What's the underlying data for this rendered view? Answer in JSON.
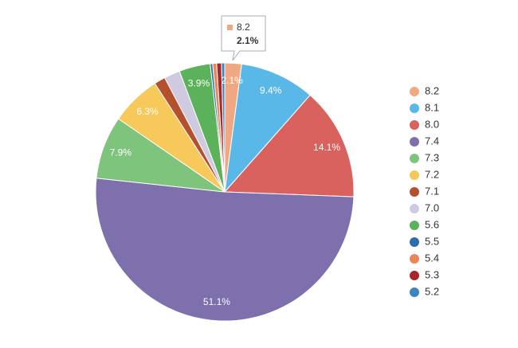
{
  "chart_data": {
    "type": "pie",
    "categories": [
      "8.2",
      "8.1",
      "8.0",
      "7.4",
      "7.3",
      "7.2",
      "7.1",
      "7.0",
      "5.6",
      "5.5",
      "5.4",
      "5.3",
      "5.2"
    ],
    "values": [
      2.1,
      9.4,
      14.1,
      51.1,
      7.9,
      6.3,
      1.4,
      2.0,
      3.9,
      0.3,
      0.5,
      0.6,
      0.4
    ],
    "value_labels": [
      "2.1%",
      "9.4%",
      "14.1%",
      "51.1%",
      "7.9%",
      "6.3%",
      null,
      null,
      "3.9%",
      null,
      null,
      null,
      null
    ],
    "colors": [
      "#f0a882",
      "#5ab8e8",
      "#d9625f",
      "#7e6fad",
      "#7fc47d",
      "#f6c95a",
      "#b5502f",
      "#cfcae0",
      "#5cb25a",
      "#2b6ea8",
      "#e8875a",
      "#a6282a",
      "#3b85c0"
    ],
    "legend": "right",
    "tooltip_index": 0
  }
}
